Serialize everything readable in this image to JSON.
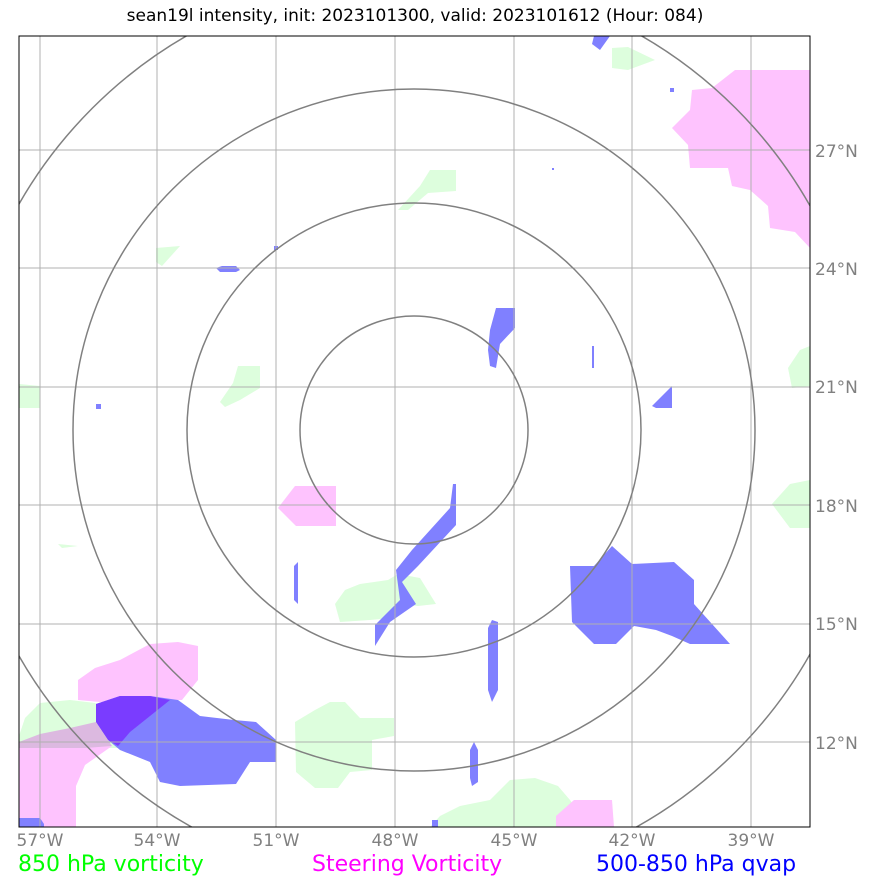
{
  "title": "sean19l intensity, init: 2023101300, valid: 2023101612 (Hour: 084)",
  "legend": [
    {
      "label": "850 hPa vorticity",
      "color": "#00ff00"
    },
    {
      "label": "Steering Vorticity",
      "color": "#ff00ff"
    },
    {
      "label": "500-850 hPa qvap",
      "color": "#0000ff"
    }
  ],
  "lon_ticks": [
    "57°W",
    "54°W",
    "51°W",
    "48°W",
    "45°W",
    "42°W",
    "39°W"
  ],
  "lat_ticks": [
    "27°N",
    "24°N",
    "21°N",
    "18°N",
    "15°N",
    "12°N"
  ],
  "fill_colors": {
    "vort850": "#ddfedd",
    "steering": "#fec3fe",
    "qvap": "#8080ff",
    "qvap_dark": "#7a3cff",
    "overlap": "#dcb9e0"
  },
  "gridline_color": "#b0b0b0",
  "range_ring_color": "#808080"
}
